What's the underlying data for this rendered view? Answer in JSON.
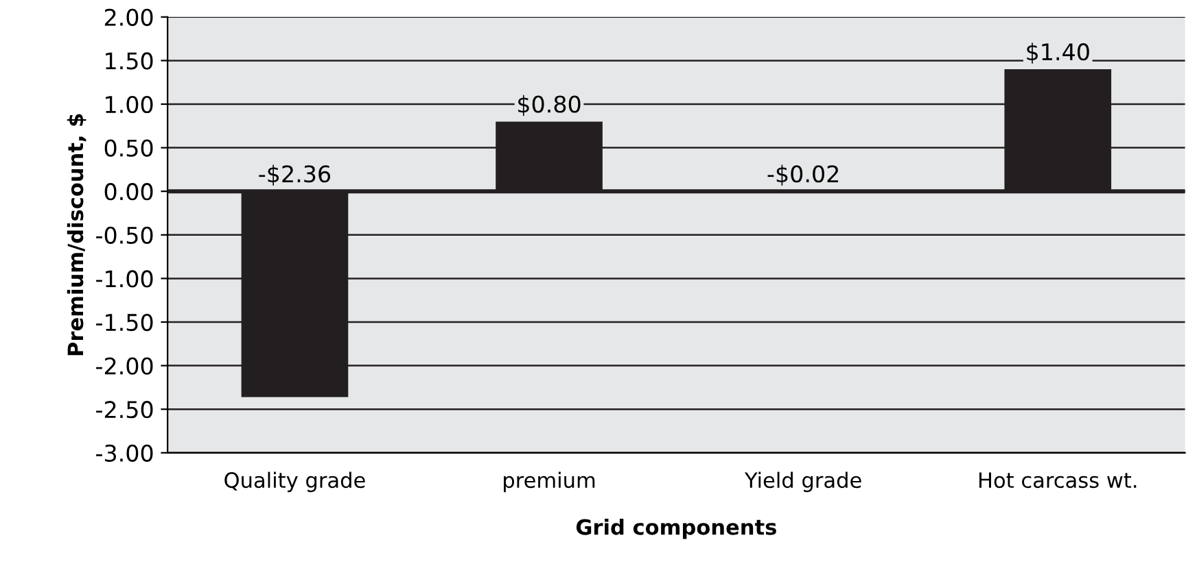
{
  "chart_data": {
    "type": "bar",
    "xlabel": "Grid components",
    "ylabel": "Premium/discount, $",
    "categories": [
      "Quality grade",
      "premium",
      "Yield grade",
      "Hot carcass wt."
    ],
    "values": [
      -2.36,
      0.8,
      -0.02,
      1.4
    ],
    "value_labels": [
      "-$2.36",
      "$0.80",
      "-$0.02",
      "$1.40"
    ],
    "color": "#231f20",
    "ylim": [
      -3.0,
      2.0
    ],
    "yticks": [
      {
        "value": 2.0,
        "label": "2.00"
      },
      {
        "value": 1.5,
        "label": "1.50"
      },
      {
        "value": 1.0,
        "label": "1.00"
      },
      {
        "value": 0.5,
        "label": "0.50"
      },
      {
        "value": 0.0,
        "label": "0.00"
      },
      {
        "value": -0.5,
        "label": "-0.50"
      },
      {
        "value": -1.0,
        "label": "-1.00"
      },
      {
        "value": -1.5,
        "label": "-1.50"
      },
      {
        "value": -2.0,
        "label": "-2.00"
      },
      {
        "value": -2.5,
        "label": "-2.50"
      },
      {
        "value": -3.0,
        "label": "-3.00"
      }
    ],
    "grid": "y",
    "legend": false
  }
}
